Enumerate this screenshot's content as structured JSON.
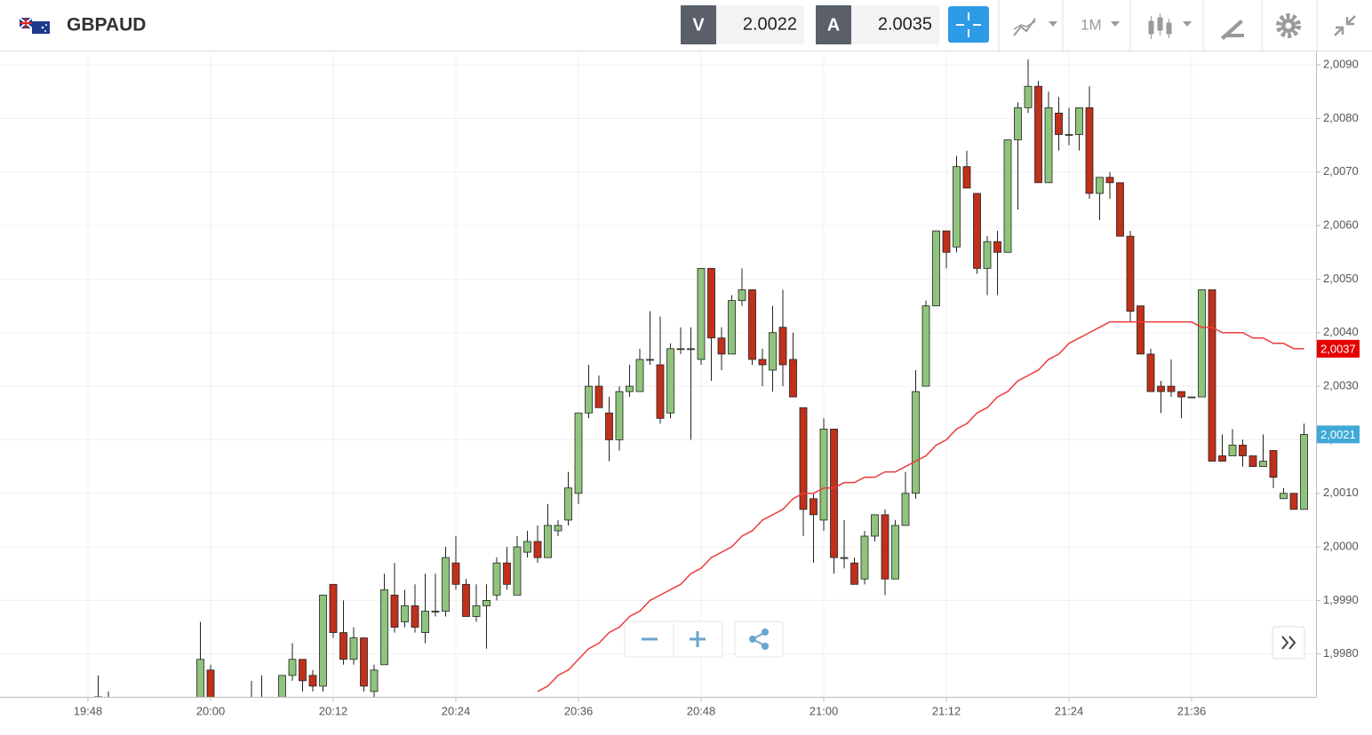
{
  "header": {
    "symbol": "GBPAUD",
    "sell_label": "V",
    "sell_price": 2.0022,
    "buy_label": "A",
    "buy_price": 2.0035,
    "interval": "1M"
  },
  "chart_data": {
    "type": "candlestick",
    "categories": [
      "19:48",
      null,
      null,
      null,
      null,
      null,
      null,
      null,
      null,
      null,
      null,
      null,
      "20:00",
      null,
      null,
      null,
      null,
      null,
      null,
      null,
      null,
      null,
      null,
      null,
      "20:12",
      null,
      null,
      null,
      null,
      null,
      null,
      null,
      null,
      null,
      null,
      null,
      "20:24",
      null,
      null,
      null,
      null,
      null,
      null,
      null,
      null,
      null,
      null,
      null,
      "20:36",
      null,
      null,
      null,
      null,
      null,
      null,
      null,
      null,
      null,
      null,
      null,
      "20:48",
      null,
      null,
      null,
      null,
      null,
      null,
      null,
      null,
      null,
      null,
      null,
      "21:00",
      null,
      null,
      null,
      null,
      null,
      null,
      null,
      null,
      null,
      null,
      null,
      "21:12",
      null,
      null,
      null,
      null,
      null,
      null,
      null,
      null,
      null,
      null,
      null,
      "21:24",
      null,
      null,
      null,
      null,
      null,
      null,
      null,
      null,
      null,
      null,
      null,
      "21:36",
      null,
      null,
      null,
      null,
      null,
      null,
      null,
      null,
      null,
      null,
      null
    ],
    "open": [
      null,
      1.9972,
      1.9971,
      null,
      null,
      null,
      null,
      null,
      null,
      null,
      null,
      1.997,
      1.9977,
      null,
      null,
      null,
      1.997,
      1.997,
      null,
      1.9971,
      1.9976,
      1.9979,
      1.9976,
      1.9974,
      1.9993,
      1.9984,
      1.9979,
      1.9983,
      1.9973,
      1.9978,
      1.9991,
      1.9986,
      1.9989,
      1.9984,
      1.9988,
      1.9988,
      1.9997,
      1.9993,
      1.9987,
      1.9989,
      1.9991,
      1.9997,
      1.9991,
      1.9999,
      2.0001,
      1.9998,
      2.0003,
      2.0005,
      2.001,
      2.0025,
      2.003,
      2.0025,
      2.002,
      2.0029,
      2.0029,
      2.0035,
      2.0034,
      2.0025,
      2.0037,
      2.0037,
      2.0035,
      2.0052,
      2.0039,
      2.0036,
      2.0046,
      2.0048,
      2.0035,
      2.0033,
      2.0041,
      2.0035,
      2.0026,
      2.0009,
      2.0005,
      2.0022,
      1.9998,
      1.9997,
      1.9994,
      2.0002,
      2.0006,
      1.9994,
      2.0004,
      2.001,
      2.003,
      2.0045,
      2.0059,
      2.0056,
      2.0071,
      2.0066,
      2.0052,
      2.0057,
      2.0055,
      2.0076,
      2.0082,
      2.0086,
      2.0068,
      2.0081,
      2.0077,
      2.0077,
      2.0082,
      2.0066,
      2.0069,
      2.0068,
      2.0058,
      2.0045,
      2.0036,
      2.003,
      2.003,
      2.0029,
      2.0028,
      2.0028,
      2.0048,
      2.0017,
      2.0017,
      2.0019,
      2.0017,
      2.0015,
      2.0018,
      2.0009,
      2.001,
      2.0007
    ],
    "high": [
      null,
      1.9976,
      1.9973,
      null,
      null,
      null,
      null,
      null,
      null,
      null,
      null,
      1.9986,
      1.9978,
      null,
      null,
      null,
      1.9975,
      1.9976,
      null,
      1.9976,
      1.9982,
      1.9979,
      1.9977,
      1.9991,
      1.9993,
      1.999,
      1.9985,
      1.9983,
      1.9978,
      1.9995,
      1.9997,
      1.9992,
      1.9993,
      1.9995,
      1.9995,
      2.0,
      2.0002,
      1.9994,
      1.9993,
      1.9993,
      1.9998,
      2.0,
      2.0002,
      2.0003,
      2.0004,
      2.0008,
      2.0005,
      2.0014,
      2.0025,
      2.0034,
      2.0032,
      2.0028,
      2.003,
      2.0034,
      2.0037,
      2.0044,
      2.0043,
      2.0038,
      2.0041,
      2.0041,
      2.0052,
      2.0052,
      2.0041,
      2.0047,
      2.0052,
      2.0048,
      2.0037,
      2.0045,
      2.0048,
      2.004,
      2.0026,
      2.001,
      2.0024,
      2.0022,
      2.0005,
      1.9998,
      2.0003,
      2.0006,
      2.0007,
      2.0005,
      2.0014,
      2.0033,
      2.0046,
      2.0059,
      2.0059,
      2.0073,
      2.0074,
      2.0066,
      2.0058,
      2.0059,
      2.0076,
      2.0083,
      2.0091,
      2.0087,
      2.0085,
      2.0084,
      2.0082,
      2.0082,
      2.0086,
      2.0069,
      2.007,
      2.0068,
      2.0059,
      2.0045,
      2.0037,
      2.0031,
      2.0035,
      2.0029,
      2.0028,
      2.0048,
      2.0048,
      2.0021,
      2.0022,
      2.002,
      2.0017,
      2.0021,
      2.0018,
      2.0011,
      2.001,
      2.0023
    ],
    "low": [
      null,
      1.997,
      1.9969,
      null,
      null,
      null,
      null,
      null,
      null,
      null,
      null,
      1.9968,
      1.9968,
      null,
      null,
      null,
      1.9968,
      1.9968,
      null,
      1.997,
      1.9975,
      1.9973,
      1.9973,
      1.9973,
      1.9983,
      1.9978,
      1.9978,
      1.9973,
      1.9972,
      1.9978,
      1.9984,
      1.9985,
      1.9984,
      1.9982,
      1.9987,
      1.9987,
      1.9992,
      1.9987,
      1.9986,
      1.9981,
      1.999,
      1.9992,
      1.9991,
      1.9998,
      1.9997,
      1.9998,
      2.0002,
      2.0004,
      2.0008,
      2.0024,
      2.0026,
      2.0016,
      2.0018,
      2.0028,
      2.0029,
      2.0034,
      2.0023,
      2.0024,
      2.0036,
      2.002,
      2.0034,
      2.0031,
      2.0033,
      2.0036,
      2.0045,
      2.0034,
      2.003,
      2.0029,
      2.003,
      2.0028,
      2.0002,
      1.9997,
      2.0003,
      1.9995,
      1.9996,
      1.9993,
      1.9993,
      2.0001,
      1.9991,
      1.9994,
      2.0004,
      2.0009,
      2.003,
      2.0045,
      2.0052,
      2.0055,
      2.0067,
      2.0051,
      2.0047,
      2.0047,
      2.0055,
      2.0063,
      2.0081,
      2.0068,
      2.0068,
      2.0074,
      2.0075,
      2.0074,
      2.0065,
      2.0061,
      2.0065,
      2.0058,
      2.0042,
      2.0036,
      2.0029,
      2.0025,
      2.0028,
      2.0024,
      2.0028,
      2.0028,
      2.0016,
      2.0016,
      2.0017,
      2.0015,
      2.0015,
      2.0015,
      2.0011,
      2.0009,
      2.0007,
      2.0007
    ],
    "close": [
      null,
      1.9971,
      1.997,
      null,
      null,
      null,
      null,
      null,
      null,
      null,
      null,
      1.9979,
      1.997,
      null,
      null,
      null,
      1.9969,
      1.9971,
      null,
      1.9976,
      1.9979,
      1.9975,
      1.9974,
      1.9991,
      1.9984,
      1.9979,
      1.9983,
      1.9974,
      1.9977,
      1.9992,
      1.9985,
      1.9989,
      1.9985,
      1.9988,
      1.9988,
      1.9998,
      1.9993,
      1.9987,
      1.9989,
      1.999,
      1.9997,
      1.9993,
      2.0,
      2.0001,
      1.9998,
      2.0004,
      2.0004,
      2.0011,
      2.0025,
      2.003,
      2.0026,
      2.002,
      2.0029,
      2.003,
      2.0035,
      2.0035,
      2.0024,
      2.0037,
      2.0037,
      2.0037,
      2.0052,
      2.0039,
      2.0036,
      2.0046,
      2.0048,
      2.0035,
      2.0034,
      2.004,
      2.0034,
      2.0028,
      2.0007,
      2.0006,
      2.0022,
      1.9998,
      1.9998,
      1.9993,
      2.0002,
      2.0006,
      1.9994,
      2.0004,
      2.001,
      2.0029,
      2.0045,
      2.0059,
      2.0055,
      2.0071,
      2.0067,
      2.0052,
      2.0057,
      2.0055,
      2.0076,
      2.0082,
      2.0086,
      2.0068,
      2.0082,
      2.0077,
      2.0077,
      2.0082,
      2.0066,
      2.0069,
      2.0068,
      2.0058,
      2.0044,
      2.0036,
      2.0029,
      2.0029,
      2.0029,
      2.0028,
      2.0028,
      2.0048,
      2.0016,
      2.0016,
      2.0019,
      2.0017,
      2.0015,
      2.0016,
      2.0013,
      2.001,
      2.0007,
      2.0021
    ],
    "up_color": "#8fc47c",
    "down_color": "#c0301a",
    "moving_average": {
      "color": "#ee3b3b",
      "values": [
        null,
        null,
        null,
        null,
        null,
        null,
        null,
        null,
        null,
        null,
        null,
        null,
        null,
        null,
        null,
        null,
        null,
        null,
        null,
        null,
        null,
        null,
        null,
        null,
        null,
        null,
        null,
        null,
        null,
        null,
        null,
        null,
        null,
        null,
        null,
        null,
        null,
        null,
        null,
        null,
        null,
        null,
        null,
        null,
        1.9973,
        1.9974,
        1.9976,
        1.9977,
        1.9979,
        1.9981,
        1.9982,
        1.9984,
        1.9985,
        1.9987,
        1.9988,
        1.999,
        1.9991,
        1.9992,
        1.9993,
        1.9995,
        1.9996,
        1.9998,
        1.9999,
        2.0,
        2.0002,
        2.0003,
        2.0005,
        2.0006,
        2.0007,
        2.0009,
        2.001,
        2.001,
        2.0011,
        2.0011,
        2.0012,
        2.0012,
        2.0013,
        2.0013,
        2.0014,
        2.0014,
        2.0015,
        2.0016,
        2.0017,
        2.0019,
        2.002,
        2.0022,
        2.0023,
        2.0025,
        2.0026,
        2.0028,
        2.0029,
        2.0031,
        2.0032,
        2.0033,
        2.0035,
        2.0036,
        2.0038,
        2.0039,
        2.004,
        2.0041,
        2.0042,
        2.0042,
        2.0042,
        2.0042,
        2.0042,
        2.0042,
        2.0042,
        2.0042,
        2.0042,
        2.0041,
        2.0041,
        2.004,
        2.004,
        2.004,
        2.0039,
        2.0039,
        2.0038,
        2.0038,
        2.0037,
        2.0037
      ]
    },
    "ylim": [
      1.9972,
      2.00925
    ],
    "yticks": [
      {
        "value": 2.009,
        "label": "2,0090"
      },
      {
        "value": 2.008,
        "label": "2,0080"
      },
      {
        "value": 2.007,
        "label": "2,0070"
      },
      {
        "value": 2.006,
        "label": "2,0060"
      },
      {
        "value": 2.005,
        "label": "2,0050"
      },
      {
        "value": 2.004,
        "label": "2,0040"
      },
      {
        "value": 2.003,
        "label": "2,0030"
      },
      {
        "value": 2.002,
        "label": "2,0020"
      },
      {
        "value": 2.001,
        "label": "2,0010"
      },
      {
        "value": 2.0,
        "label": "2,0000"
      },
      {
        "value": 1.999,
        "label": "1,9990"
      },
      {
        "value": 1.998,
        "label": "1,9980"
      }
    ],
    "grid": true,
    "price_markers": [
      {
        "value": 2.0037,
        "label": "2,0037",
        "color": "#e60000"
      },
      {
        "value": 2.0021,
        "label": "2,0021",
        "color": "#3fa9d6"
      }
    ]
  }
}
